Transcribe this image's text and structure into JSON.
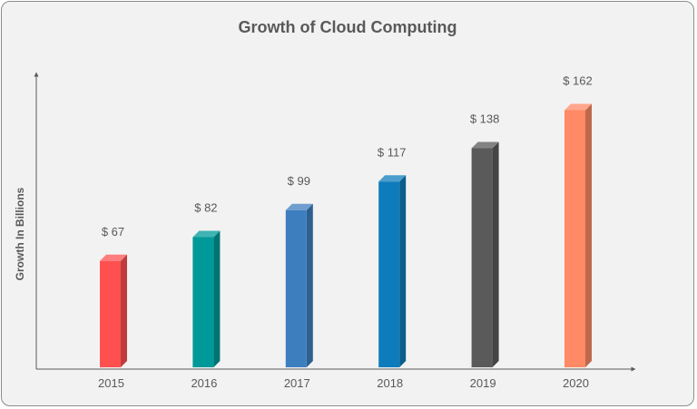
{
  "chart_data": {
    "type": "bar",
    "title": "Growth of Cloud Computing",
    "xlabel": "",
    "ylabel": "Growth In Billions",
    "categories": [
      "2015",
      "2016",
      "2017",
      "2018",
      "2019",
      "2020"
    ],
    "values": [
      67,
      82,
      99,
      117,
      138,
      162
    ],
    "data_labels": [
      "$ 67",
      "$ 82",
      "$ 99",
      "$ 117",
      "$ 138",
      "$ 162"
    ],
    "colors": [
      "#ff5050",
      "#009999",
      "#3d7ebf",
      "#0e7cbb",
      "#5a5a5a",
      "#ff8a65"
    ],
    "ylim": [
      0,
      180
    ],
    "grid": false,
    "legend": "none"
  }
}
